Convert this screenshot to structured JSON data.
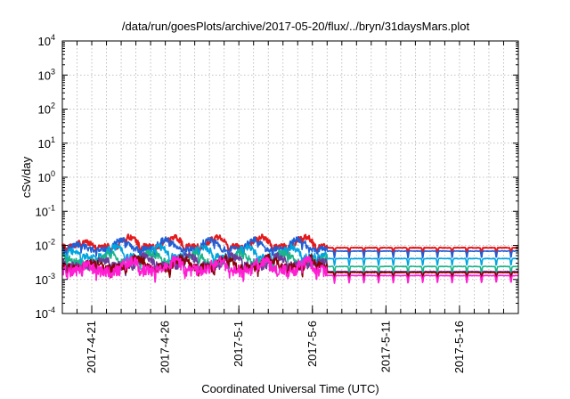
{
  "chart_data": {
    "type": "line",
    "title": "/data/run/goesPlots/archive/2017-05-20/flux/../bryn/31daysMars.plot",
    "xlabel": "Coordinated Universal Time (UTC)",
    "ylabel": "cSv/day",
    "yscale": "log",
    "ylim": [
      0.0001,
      10000
    ],
    "xlim": [
      "2017-04-19",
      "2017-05-20"
    ],
    "grid": true,
    "x_ticks": [
      "2017-4-21",
      "2017-4-26",
      "2017-5-1",
      "2017-5-6",
      "2017-5-11",
      "2017-5-16"
    ],
    "x_tick_dates": [
      "2017-04-21",
      "2017-04-26",
      "2017-05-01",
      "2017-05-06",
      "2017-05-11",
      "2017-05-16"
    ],
    "y_ticks": [
      {
        "value": 0.0001,
        "base": "10",
        "exp": "-4"
      },
      {
        "value": 0.001,
        "base": "10",
        "exp": "-3"
      },
      {
        "value": 0.01,
        "base": "10",
        "exp": "-2"
      },
      {
        "value": 0.1,
        "base": "10",
        "exp": "-1"
      },
      {
        "value": 1,
        "base": "10",
        "exp": "0"
      },
      {
        "value": 10,
        "base": "10",
        "exp": "1"
      },
      {
        "value": 100,
        "base": "10",
        "exp": "2"
      },
      {
        "value": 1000,
        "base": "10",
        "exp": "3"
      },
      {
        "value": 10000,
        "base": "10",
        "exp": "4"
      }
    ],
    "series": [
      {
        "color": "#e41a1c",
        "before": 0.0095,
        "after": 0.0085,
        "dip": 0.62,
        "noise": 0.18
      },
      {
        "color": "#1f5fd6",
        "before": 0.0078,
        "after": 0.0068,
        "dip": 0.62,
        "noise": 0.2
      },
      {
        "color": "#00a5e0",
        "before": 0.0048,
        "after": 0.0041,
        "dip": 0.62,
        "noise": 0.22
      },
      {
        "color": "#1bb488",
        "before": 0.0033,
        "after": 0.0024,
        "dip": 0.62,
        "noise": 0.26
      },
      {
        "color": "#6a3d9a",
        "before": 0.0026,
        "after": 0.0017,
        "dip": 0.6,
        "noise": 0.28
      },
      {
        "color": "#8b0000",
        "before": 0.0023,
        "after": 0.0016,
        "dip": 0.6,
        "noise": 0.28
      },
      {
        "color": "#ff1ed2",
        "before": 0.0019,
        "after": 0.0013,
        "dip": 0.6,
        "noise": 0.38
      }
    ],
    "data_note_days": {
      "change": "2017-05-07"
    }
  }
}
